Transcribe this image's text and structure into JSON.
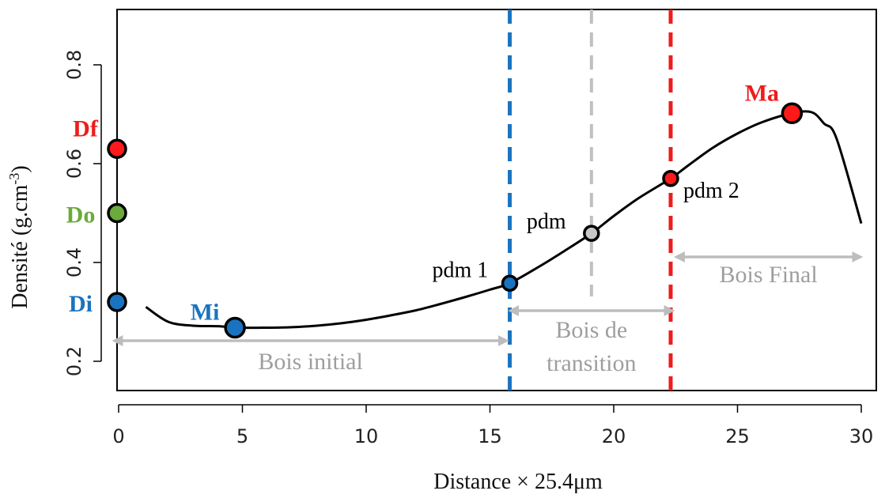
{
  "chart_data": {
    "type": "line",
    "xlabel": "Distance × 25.4μm",
    "ylabel": "Densité (g.cm",
    "ylabel_superscript": "-3",
    "ylabel_close": ")",
    "xlim": [
      0,
      30
    ],
    "ylim": [
      0.2,
      0.8
    ],
    "xticks": [
      0,
      5,
      10,
      15,
      20,
      25,
      30
    ],
    "yticks": [
      0.2,
      0.4,
      0.6,
      0.8
    ],
    "grid": false,
    "series": [
      {
        "color": "#000000",
        "x": [
          1.1,
          2.0,
          3.0,
          4.0,
          5.0,
          6.0,
          7.0,
          8.0,
          9.0,
          10.0,
          11.0,
          12.0,
          13.0,
          14.0,
          15.0,
          15.8,
          17.0,
          18.0,
          19.1,
          20.0,
          21.0,
          22.3,
          23.0,
          24.0,
          25.0,
          26.0,
          27.2,
          28.0,
          28.5,
          29.0,
          30.0
        ],
        "y": [
          0.31,
          0.28,
          0.272,
          0.271,
          0.268,
          0.268,
          0.269,
          0.272,
          0.277,
          0.284,
          0.293,
          0.303,
          0.316,
          0.33,
          0.345,
          0.358,
          0.392,
          0.423,
          0.459,
          0.494,
          0.53,
          0.57,
          0.596,
          0.632,
          0.661,
          0.684,
          0.702,
          0.704,
          0.681,
          0.651,
          0.479
        ]
      }
    ],
    "vlines": [
      {
        "x": 15.8,
        "color": "#1a73c0"
      },
      {
        "x": 19.1,
        "color": "#c0c0c0"
      },
      {
        "x": 22.3,
        "color": "#ee1c1c"
      }
    ],
    "points": [
      {
        "label": "Df",
        "x": 0,
        "y": 0.63,
        "color": "#ff1a1a",
        "label_color": "#ee1c1c"
      },
      {
        "label": "Do",
        "x": 0,
        "y": 0.5,
        "color": "#6aab3c",
        "label_color": "#6aab3c"
      },
      {
        "label": "Di",
        "x": 0,
        "y": 0.32,
        "color": "#1a73c0",
        "label_color": "#1a73c0"
      },
      {
        "label": "Mi",
        "x": 4.7,
        "y": 0.268,
        "color": "#1a73c0",
        "label_color": "#1a73c0"
      },
      {
        "label": "Ma",
        "x": 27.2,
        "y": 0.702,
        "color": "#ff1a1a",
        "label_color": "#ee1c1c"
      },
      {
        "label": "pdm 1",
        "x": 15.8,
        "y": 0.358,
        "color": "#1a73c0",
        "label_color": "#000000"
      },
      {
        "label": "pdm",
        "x": 19.1,
        "y": 0.459,
        "color": "#c8c8c8",
        "label_color": "#000000"
      },
      {
        "label": "pdm 2",
        "x": 22.3,
        "y": 0.57,
        "color": "#ff1a1a",
        "label_color": "#000000"
      }
    ],
    "spans": [
      {
        "label": "Bois initial",
        "x_start": 0,
        "x_end": 15.5
      },
      {
        "label_line1": "Bois de",
        "label_line2": "transition",
        "x_start": 16,
        "x_end": 22.2
      },
      {
        "label": "Bois Final",
        "x_start": 22.7,
        "x_end": 29.8
      }
    ],
    "span_color": "#bdbdbd"
  }
}
